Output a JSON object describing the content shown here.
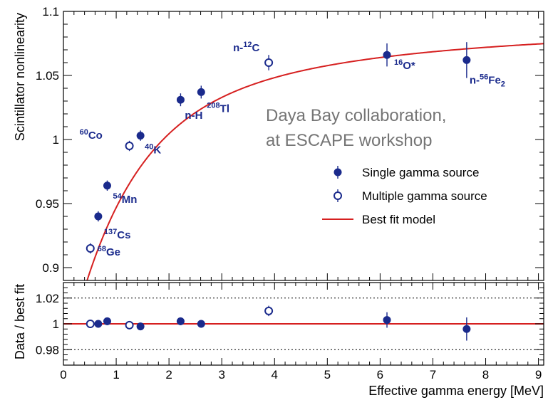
{
  "chart_data": [
    {
      "type": "scatter",
      "panel": "main",
      "ylabel": "Scintillator nonlinearity",
      "xlim": [
        0,
        9.1
      ],
      "ylim": [
        0.89,
        1.1
      ],
      "x_ticks": [
        0,
        1,
        2,
        3,
        4,
        5,
        6,
        7,
        8,
        9
      ],
      "y_ticks": [
        {
          "value": 0.9,
          "label": "0.9"
        },
        {
          "value": 0.95,
          "label": "0.95"
        },
        {
          "value": 1.0,
          "label": "1"
        },
        {
          "value": 1.05,
          "label": "1.05"
        },
        {
          "value": 1.1,
          "label": "1.1"
        }
      ],
      "series": [
        {
          "name": "Single gamma source",
          "marker": "filled-circle",
          "points": [
            {
              "x": 0.66,
              "y": 0.94,
              "err": 0.004
            },
            {
              "x": 0.83,
              "y": 0.964,
              "err": 0.004
            },
            {
              "x": 1.46,
              "y": 1.003,
              "err": 0.004
            },
            {
              "x": 2.22,
              "y": 1.031,
              "err": 0.005
            },
            {
              "x": 2.61,
              "y": 1.037,
              "err": 0.005
            },
            {
              "x": 6.13,
              "y": 1.066,
              "err": 0.009
            },
            {
              "x": 7.64,
              "y": 1.062,
              "err": 0.014
            }
          ]
        },
        {
          "name": "Multiple gamma source",
          "marker": "open-circle",
          "points": [
            {
              "x": 0.51,
              "y": 0.915,
              "err": 0.004
            },
            {
              "x": 1.25,
              "y": 0.995,
              "err": 0.004
            },
            {
              "x": 3.89,
              "y": 1.06,
              "err": 0.006
            }
          ]
        },
        {
          "name": "Best fit model",
          "type": "line",
          "color": "#d62020",
          "function": "1.085 - 0.1877*exp(-x/1.12) - 0.0765*exp(-x/4.5)"
        }
      ],
      "annotations": [
        {
          "id": "ge",
          "text": "Ge",
          "sup": "68",
          "x": 0.51,
          "y": 0.915
        },
        {
          "id": "cs",
          "text": "Cs",
          "sup": "137",
          "x": 0.66,
          "y": 0.94
        },
        {
          "id": "mn",
          "text": "Mn",
          "sup": "54",
          "x": 0.83,
          "y": 0.964
        },
        {
          "id": "co",
          "text": "Co",
          "sup": "60",
          "x": 1.25,
          "y": 0.995
        },
        {
          "id": "k",
          "text": "K",
          "sup": "40",
          "x": 1.46,
          "y": 1.003
        },
        {
          "id": "nh",
          "text": "n-H",
          "sup": "",
          "x": 2.22,
          "y": 1.031
        },
        {
          "id": "tl",
          "text": "Tl",
          "sup": "208",
          "x": 2.61,
          "y": 1.037
        },
        {
          "id": "c",
          "text": "C",
          "pre": "n-",
          "sup": "12",
          "x": 3.89,
          "y": 1.06
        },
        {
          "id": "o",
          "text": "O*",
          "sup": "16",
          "x": 6.13,
          "y": 1.066
        },
        {
          "id": "fe",
          "text": "Fe",
          "pre": "n-",
          "sup": "56",
          "sub": "2",
          "x": 7.64,
          "y": 1.062
        }
      ],
      "legend_position": "right-middle",
      "watermark_lines": [
        "Daya Bay collaboration,",
        "at  ESCAPE workshop"
      ]
    },
    {
      "type": "scatter",
      "panel": "ratio",
      "ylabel": "Data / best fit",
      "xlabel": "Effective gamma energy [MeV]",
      "xlim": [
        0,
        9.1
      ],
      "ylim": [
        0.968,
        1.032
      ],
      "x_ticks": [
        0,
        1,
        2,
        3,
        4,
        5,
        6,
        7,
        8,
        9
      ],
      "y_ticks": [
        {
          "value": 0.98,
          "label": "0.98"
        },
        {
          "value": 1.0,
          "label": "1"
        },
        {
          "value": 1.02,
          "label": "1.02"
        }
      ],
      "dotted_lines": [
        0.98,
        1.02
      ],
      "reference_line": 1.0,
      "series": [
        {
          "name": "Single gamma source",
          "marker": "filled-circle",
          "points": [
            {
              "x": 0.66,
              "y": 1.0,
              "err": 0.003
            },
            {
              "x": 0.83,
              "y": 1.002,
              "err": 0.003
            },
            {
              "x": 1.46,
              "y": 0.998,
              "err": 0.003
            },
            {
              "x": 2.22,
              "y": 1.002,
              "err": 0.003
            },
            {
              "x": 2.61,
              "y": 1.0,
              "err": 0.003
            },
            {
              "x": 6.13,
              "y": 1.003,
              "err": 0.006
            },
            {
              "x": 7.64,
              "y": 0.996,
              "err": 0.009
            }
          ]
        },
        {
          "name": "Multiple gamma source",
          "marker": "open-circle",
          "points": [
            {
              "x": 0.51,
              "y": 1.0,
              "err": 0.003
            },
            {
              "x": 1.25,
              "y": 0.999,
              "err": 0.003
            },
            {
              "x": 3.89,
              "y": 1.01,
              "err": 0.004
            }
          ]
        }
      ]
    }
  ]
}
